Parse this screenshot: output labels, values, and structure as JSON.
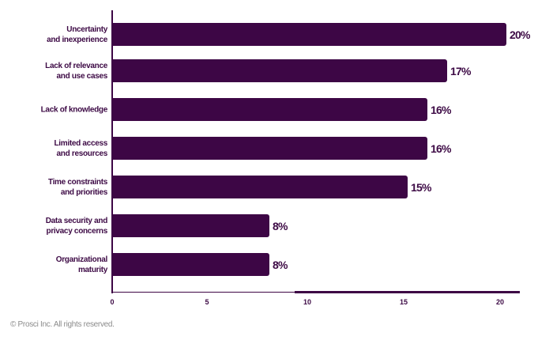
{
  "chart_data": {
    "type": "bar",
    "orientation": "horizontal",
    "title": "",
    "xlabel": "",
    "ylabel": "",
    "categories": [
      "Uncertainty\nand inexperience",
      "Lack of relevance\nand use cases",
      "Lack of knowledge",
      "Limited access\nand resources",
      "Time constraints\nand priorities",
      "Data security and\nprivacy concerns",
      "Organizational\nmaturity"
    ],
    "values": [
      20,
      17,
      16,
      16,
      15,
      8,
      8
    ],
    "value_labels": [
      "20%",
      "17%",
      "16%",
      "16%",
      "15%",
      "8%",
      "8%"
    ],
    "xlim": [
      0,
      21
    ],
    "xticks": [
      "0",
      "5",
      "10",
      "15",
      "20"
    ],
    "grid": false,
    "legend": null,
    "bar_color": "#3d0645"
  },
  "footer": {
    "copyright": "© Prosci Inc. All rights reserved."
  },
  "colors": {
    "bar": "#3d0645",
    "text": "#3d0a45",
    "footer_text": "#8c8c8c",
    "background": "#ffffff"
  }
}
